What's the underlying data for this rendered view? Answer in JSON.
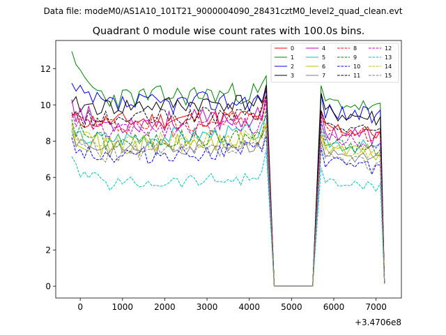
{
  "suptitle": "Data file: modeM0/AS1A10_101T21_9000004090_28431cztM0_level2_quad_clean.evt",
  "chart_data": {
    "type": "line",
    "title": "Quadrant 0 module wise count rates with 100.0s bins.",
    "xlabel": "",
    "ylabel": "",
    "x_offset_label": "+3.4706e8",
    "xlim": [
      -580,
      7600
    ],
    "ylim": [
      -0.65,
      13.55
    ],
    "xticks": [
      0,
      1000,
      2000,
      3000,
      4000,
      5000,
      6000,
      7000
    ],
    "yticks": [
      0,
      2,
      4,
      6,
      8,
      10,
      12
    ],
    "legend_position": "top-right",
    "legend_columns": 4,
    "gap_segment": {
      "x": [
        4590,
        5500
      ],
      "y": 0.02
    },
    "seg1_start": -200,
    "seg1_step": 100,
    "seg2_start": 5700,
    "seg2_step": 100,
    "series": [
      {
        "name": "0",
        "color": "#ff0000",
        "dashed": false,
        "base1": 9.0,
        "noise1": 0.5,
        "base2": 8.8,
        "noise2": 0.4,
        "start": 9.3,
        "peak": 11.0,
        "final": 0.2,
        "seed": 11
      },
      {
        "name": "1",
        "color": "#008000",
        "dashed": false,
        "base1": 10.3,
        "noise1": 0.6,
        "base2": 10.2,
        "noise2": 0.4,
        "start": 12.95,
        "peak": 11.6,
        "final": 0.15,
        "seed": 23
      },
      {
        "name": "2",
        "color": "#0000ff",
        "dashed": false,
        "base1": 9.9,
        "noise1": 0.6,
        "base2": 9.7,
        "noise2": 0.5,
        "start": 11.2,
        "peak": 10.8,
        "final": 0.2,
        "seed": 37
      },
      {
        "name": "3",
        "color": "#000000",
        "dashed": false,
        "base1": 9.8,
        "noise1": 0.5,
        "base2": 9.6,
        "noise2": 0.5,
        "start": 10.1,
        "peak": 11.1,
        "final": 0.15,
        "seed": 41
      },
      {
        "name": "4",
        "color": "#bf00bf",
        "dashed": false,
        "base1": 8.9,
        "noise1": 0.6,
        "base2": 8.6,
        "noise2": 0.5,
        "start": 10.3,
        "peak": 10.6,
        "final": 0.2,
        "seed": 53
      },
      {
        "name": "5",
        "color": "#00bfbf",
        "dashed": false,
        "base1": 8.1,
        "noise1": 0.5,
        "base2": 8.0,
        "noise2": 0.4,
        "start": 8.3,
        "peak": 9.4,
        "final": 0.2,
        "seed": 67
      },
      {
        "name": "6",
        "color": "#bfbf00",
        "dashed": false,
        "base1": 7.6,
        "noise1": 0.6,
        "base2": 7.7,
        "noise2": 0.5,
        "start": 9.0,
        "peak": 9.0,
        "final": 0.2,
        "seed": 71
      },
      {
        "name": "7",
        "color": "#808080",
        "dashed": false,
        "base1": 7.5,
        "noise1": 0.5,
        "base2": 7.4,
        "noise2": 0.4,
        "start": 8.6,
        "peak": 8.8,
        "final": 0.2,
        "seed": 83
      },
      {
        "name": "8",
        "color": "#ff0000",
        "dashed": true,
        "base1": 8.8,
        "noise1": 0.5,
        "base2": 8.7,
        "noise2": 0.4,
        "start": 9.5,
        "peak": 10.2,
        "final": 0.2,
        "seed": 97
      },
      {
        "name": "9",
        "color": "#008000",
        "dashed": true,
        "base1": 7.9,
        "noise1": 0.5,
        "base2": 7.9,
        "noise2": 0.4,
        "start": 9.2,
        "peak": 9.8,
        "final": 0.2,
        "seed": 101
      },
      {
        "name": "10",
        "color": "#0000ff",
        "dashed": true,
        "base1": 7.1,
        "noise1": 0.5,
        "base2": 6.9,
        "noise2": 0.4,
        "start": 8.2,
        "peak": 8.3,
        "final": 0.2,
        "seed": 113
      },
      {
        "name": "11",
        "color": "#000000",
        "dashed": true,
        "base1": 9.1,
        "noise1": 0.5,
        "base2": 8.9,
        "noise2": 0.4,
        "start": 9.4,
        "peak": 10.5,
        "final": 0.2,
        "seed": 127
      },
      {
        "name": "12",
        "color": "#bf00bf",
        "dashed": true,
        "base1": 8.5,
        "noise1": 0.5,
        "base2": 8.3,
        "noise2": 0.4,
        "start": 9.6,
        "peak": 10.3,
        "final": 0.2,
        "seed": 131
      },
      {
        "name": "13",
        "color": "#00bfbf",
        "dashed": true,
        "base1": 5.6,
        "noise1": 0.4,
        "base2": 5.8,
        "noise2": 0.3,
        "start": 7.15,
        "peak": 7.5,
        "final": 0.15,
        "seed": 139
      },
      {
        "name": "14",
        "color": "#bfbf00",
        "dashed": true,
        "base1": 7.8,
        "noise1": 0.5,
        "base2": 7.7,
        "noise2": 0.4,
        "start": 8.9,
        "peak": 9.0,
        "final": 0.2,
        "seed": 149
      },
      {
        "name": "15",
        "color": "#808080",
        "dashed": true,
        "base1": 7.2,
        "noise1": 0.5,
        "base2": 7.1,
        "noise2": 0.4,
        "start": 8.7,
        "peak": 8.6,
        "final": 0.2,
        "seed": 157
      }
    ]
  }
}
